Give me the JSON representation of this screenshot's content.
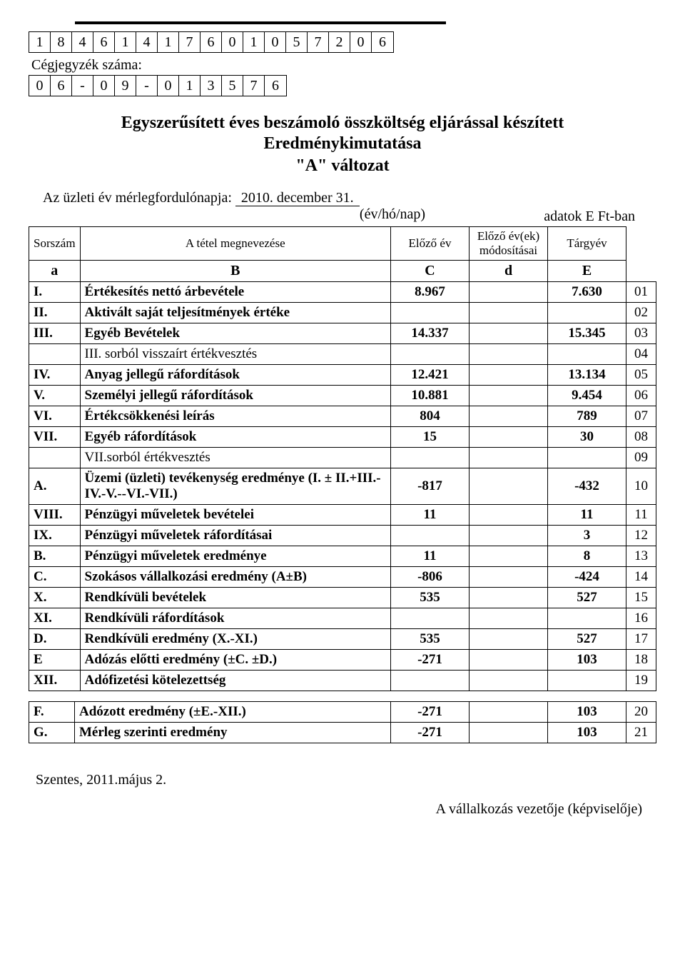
{
  "tax_number_digits": [
    "1",
    "8",
    "4",
    "6",
    "1",
    "4",
    "1",
    "7",
    "6",
    "0",
    "1",
    "0",
    "5",
    "7",
    "2",
    "0",
    "6"
  ],
  "reg_label": "Cégjegyzék száma:",
  "reg_digits": [
    "0",
    "6",
    "-",
    "0",
    "9",
    "-",
    "0",
    "1",
    "3",
    "5",
    "7",
    "6"
  ],
  "title_line1": "Egyszerűsített éves beszámoló összköltség eljárással készített",
  "title_line2": "Eredménykimutatása",
  "title_line3": "\"A\" változat",
  "meta_label": "Az üzleti év mérlegfordulónapja:",
  "meta_date": "2010. december 31.",
  "meta_sub": "(év/hó/nap)",
  "unit": "adatok E Ft-ban",
  "headers": {
    "a": "Sorszám",
    "b": "A tétel megnevezése",
    "c": "Előző év",
    "d": "Előző év(ek) módosításai",
    "e": "Tárgyév"
  },
  "header2": {
    "a": "a",
    "b": "B",
    "c": "C",
    "d": "d",
    "e": "E"
  },
  "rows": [
    {
      "a": "I.",
      "b": "Értékesítés nettó árbevétele",
      "c": "8.967",
      "d": "",
      "e": "7.630",
      "n": "01",
      "bold": true
    },
    {
      "a": "II.",
      "b": "Aktivált saját teljesítmények értéke",
      "c": "",
      "d": "",
      "e": "",
      "n": "02",
      "bold": true
    },
    {
      "a": "III.",
      "b": "Egyéb Bevételek",
      "c": "14.337",
      "d": "",
      "e": "15.345",
      "n": "03",
      "bold": true
    },
    {
      "a": "",
      "b": "III. sorból visszaírt értékvesztés",
      "c": "",
      "d": "",
      "e": "",
      "n": "04",
      "bold": false
    },
    {
      "a": "IV.",
      "b": "Anyag jellegű ráfordítások",
      "c": "12.421",
      "d": "",
      "e": "13.134",
      "n": "05",
      "bold": true
    },
    {
      "a": "V.",
      "b": "Személyi jellegű ráfordítások",
      "c": "10.881",
      "d": "",
      "e": "9.454",
      "n": "06",
      "bold": true
    },
    {
      "a": "VI.",
      "b": "Értékcsökkenési leírás",
      "c": "804",
      "d": "",
      "e": "789",
      "n": "07",
      "bold": true
    },
    {
      "a": "VII.",
      "b": "Egyéb ráfordítások",
      "c": "15",
      "d": "",
      "e": "30",
      "n": "08",
      "bold": true
    },
    {
      "a": "",
      "b": "VII.sorból értékvesztés",
      "c": "",
      "d": "",
      "e": "",
      "n": "09",
      "bold": false
    },
    {
      "a": "A.",
      "b": "Üzemi (üzleti) tevékenység eredménye (I. ± II.+III.-IV.-V.--VI.-VII.)",
      "c": "-817",
      "d": "",
      "e": "-432",
      "n": "10",
      "bold": true
    },
    {
      "a": "VIII.",
      "b": "Pénzügyi műveletek bevételei",
      "c": "11",
      "d": "",
      "e": "11",
      "n": "11",
      "bold": true
    },
    {
      "a": "IX.",
      "b": "Pénzügyi műveletek ráfordításai",
      "c": "",
      "d": "",
      "e": "3",
      "n": "12",
      "bold": true
    },
    {
      "a": "B.",
      "b": "Pénzügyi műveletek eredménye",
      "c": "11",
      "d": "",
      "e": "8",
      "n": "13",
      "bold": true
    },
    {
      "a": "C.",
      "b": "Szokásos vállalkozási eredmény (A±B)",
      "c": "-806",
      "d": "",
      "e": "-424",
      "n": "14",
      "bold": true
    },
    {
      "a": "X.",
      "b": "Rendkívüli bevételek",
      "c": "535",
      "d": "",
      "e": "527",
      "n": "15",
      "bold": true
    },
    {
      "a": "XI.",
      "b": "Rendkívüli ráfordítások",
      "c": "",
      "d": "",
      "e": "",
      "n": "16",
      "bold": true
    },
    {
      "a": "D.",
      "b": "Rendkívüli eredmény (X.-XI.)",
      "c": "535",
      "d": "",
      "e": "527",
      "n": "17",
      "bold": true
    },
    {
      "a": "E",
      "b": "Adózás előtti eredmény (±C. ±D.)",
      "c": "-271",
      "d": "",
      "e": "103",
      "n": "18",
      "bold": true
    },
    {
      "a": "XII.",
      "b": "Adófizetési kötelezettség",
      "c": "",
      "d": "",
      "e": "",
      "n": "19",
      "bold": true
    }
  ],
  "rows2": [
    {
      "a": "F.",
      "b": "Adózott eredmény (±E.-XII.)",
      "c": "-271",
      "d": "",
      "e": "103",
      "n": "20",
      "bold": true
    },
    {
      "a": "G.",
      "b": "Mérleg szerinti eredmény",
      "c": "-271",
      "d": "",
      "e": "103",
      "n": "21",
      "bold": true
    }
  ],
  "footer_left": "Szentes, 2011.május 2.",
  "footer_right": "A vállalkozás vezetője (képviselője)"
}
